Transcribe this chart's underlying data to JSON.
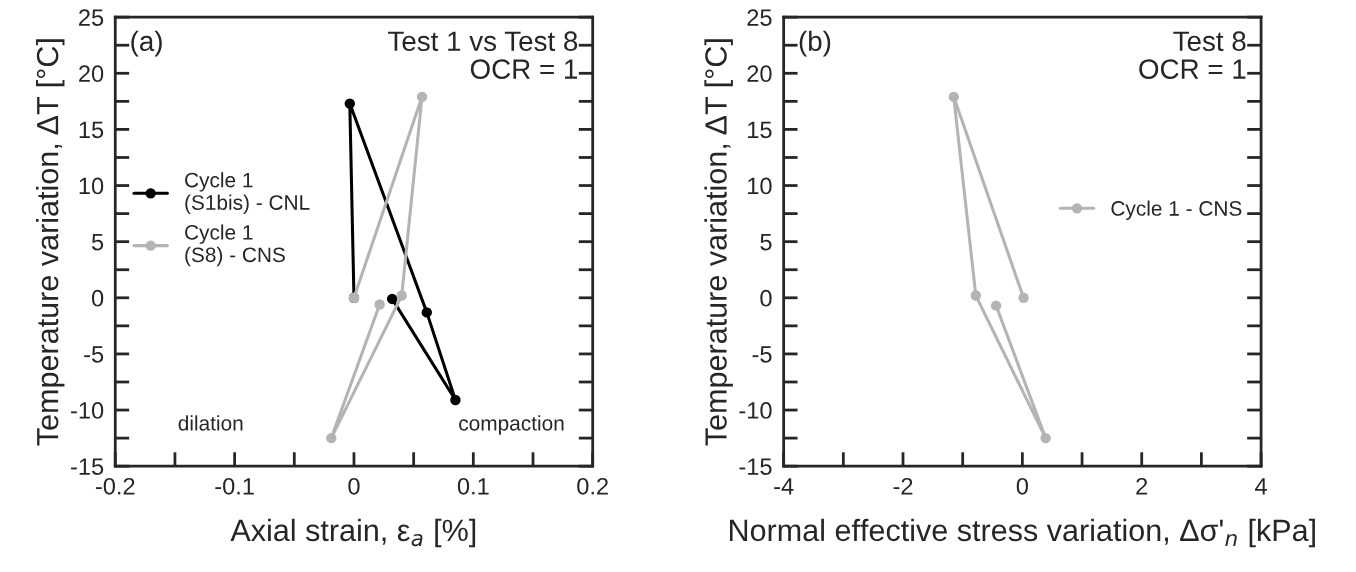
{
  "chart_data": [
    {
      "type": "line",
      "xlabel": "Axial strain, ε$_{a}$ [%]",
      "ylabel": "Temperature variation, ΔT [°C]",
      "annotations": [
        "(a)",
        "Test 1 vs Test 8\nOCR = 1",
        "dilation",
        "compaction"
      ],
      "series": [
        {
          "name": "Cycle 1\n(S1bis) - CNL",
          "color": "#000000",
          "x": [
            0,
            -0.0035,
            0.061,
            0.085,
            0.032
          ],
          "values": [
            0,
            17.3,
            -1.3,
            -9.1,
            -0.1
          ]
        },
        {
          "name": "Cycle 1\n(S8) - CNS",
          "color": "#b4b4b4",
          "x": [
            0,
            0.057,
            0.04,
            -0.019,
            0.0215
          ],
          "values": [
            0,
            17.9,
            0.2,
            -12.5,
            -0.6
          ]
        }
      ],
      "xlim": [
        -0.2,
        0.2
      ],
      "xticks": [
        -0.2,
        {
          "value": -0.15,
          "label": null
        },
        -0.1,
        {
          "value": -0.05,
          "label": null
        },
        0,
        {
          "value": 0.05,
          "label": null
        },
        0.1,
        {
          "value": 0.15,
          "label": null
        },
        0.2
      ],
      "ylim": [
        -15,
        25
      ],
      "yticks": [
        -15,
        {
          "value": -12.5,
          "label": null
        },
        -10,
        {
          "value": -7.5,
          "label": null
        },
        -5,
        {
          "value": -2.5,
          "label": null
        },
        0,
        {
          "value": 2.5,
          "label": null
        },
        5,
        {
          "value": 7.5,
          "label": null
        },
        10,
        {
          "value": 12.5,
          "label": null
        },
        15,
        {
          "value": 17.5,
          "label": null
        },
        20,
        {
          "value": 22.5,
          "label": null
        },
        25
      ],
      "legend": "left",
      "marker": "circle",
      "grid": false
    },
    {
      "type": "line",
      "xlabel": "Normal effective stress variation, Δσ'$_{n}$ [kPa]",
      "ylabel": "Temperature variation, ΔT [°C]",
      "annotations": [
        "(b)",
        "Test 8\nOCR = 1"
      ],
      "series": [
        {
          "name": "Cycle 1 - CNS",
          "color": "#b4b4b4",
          "x": [
            0.02,
            -1.15,
            -0.78,
            0.39,
            -0.44
          ],
          "values": [
            0,
            17.9,
            0.2,
            -12.5,
            -0.7
          ]
        }
      ],
      "xlim": [
        -4,
        4
      ],
      "xticks": [
        -4,
        {
          "value": -3,
          "label": null
        },
        -2,
        {
          "value": -1,
          "label": null
        },
        0,
        {
          "value": 1,
          "label": null
        },
        2,
        {
          "value": 3,
          "label": null
        },
        4
      ],
      "ylim": [
        -15,
        25
      ],
      "yticks": [
        -15,
        {
          "value": -12.5,
          "label": null
        },
        -10,
        {
          "value": -7.5,
          "label": null
        },
        -5,
        {
          "value": -2.5,
          "label": null
        },
        0,
        {
          "value": 2.5,
          "label": null
        },
        5,
        {
          "value": 7.5,
          "label": null
        },
        10,
        {
          "value": 12.5,
          "label": null
        },
        15,
        {
          "value": 17.5,
          "label": null
        },
        20,
        {
          "value": 22.5,
          "label": null
        },
        25
      ],
      "legend": "right",
      "marker": "circle",
      "grid": false
    }
  ]
}
